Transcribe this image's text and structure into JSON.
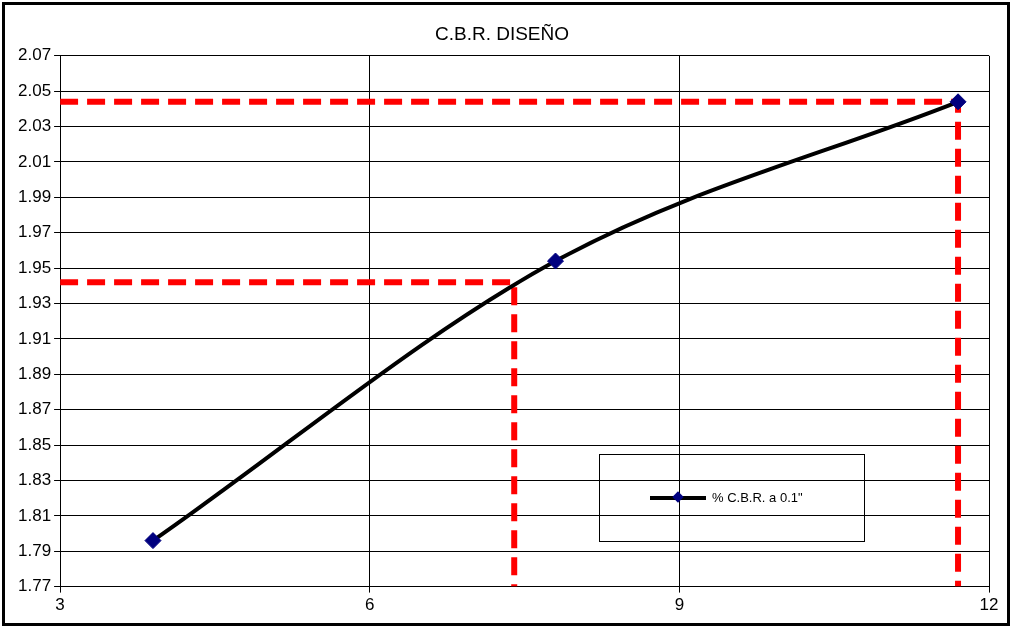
{
  "chart_data": {
    "type": "line",
    "title": "C.B.R. DISEÑO",
    "xlim": [
      3,
      12
    ],
    "xticks": [
      3,
      6,
      9,
      12
    ],
    "ylim": [
      1.77,
      2.07
    ],
    "yticks": [
      1.77,
      1.79,
      1.81,
      1.83,
      1.85,
      1.87,
      1.89,
      1.91,
      1.93,
      1.95,
      1.97,
      1.99,
      2.01,
      2.03,
      2.05,
      2.07
    ],
    "grid": true,
    "legend": "bottom right",
    "series": [
      {
        "name": "% C.B.R. a 0.1\"",
        "color": "#000000",
        "x": [
          3.9,
          7.8,
          11.7
        ],
        "values": [
          1.796,
          1.954,
          2.044
        ],
        "marker": "diamond",
        "line_style": "solid"
      },
      {
        "color": "#ff0000",
        "x": [
          3,
          7.4,
          7.4
        ],
        "values": [
          1.942,
          1.942,
          1.77
        ],
        "marker": "none",
        "line_style": "dashed"
      },
      {
        "color": "#ff0000",
        "x": [
          3,
          11.7,
          11.7
        ],
        "values": [
          2.044,
          2.044,
          1.77
        ],
        "marker": "none",
        "line_style": "dashed"
      }
    ]
  }
}
